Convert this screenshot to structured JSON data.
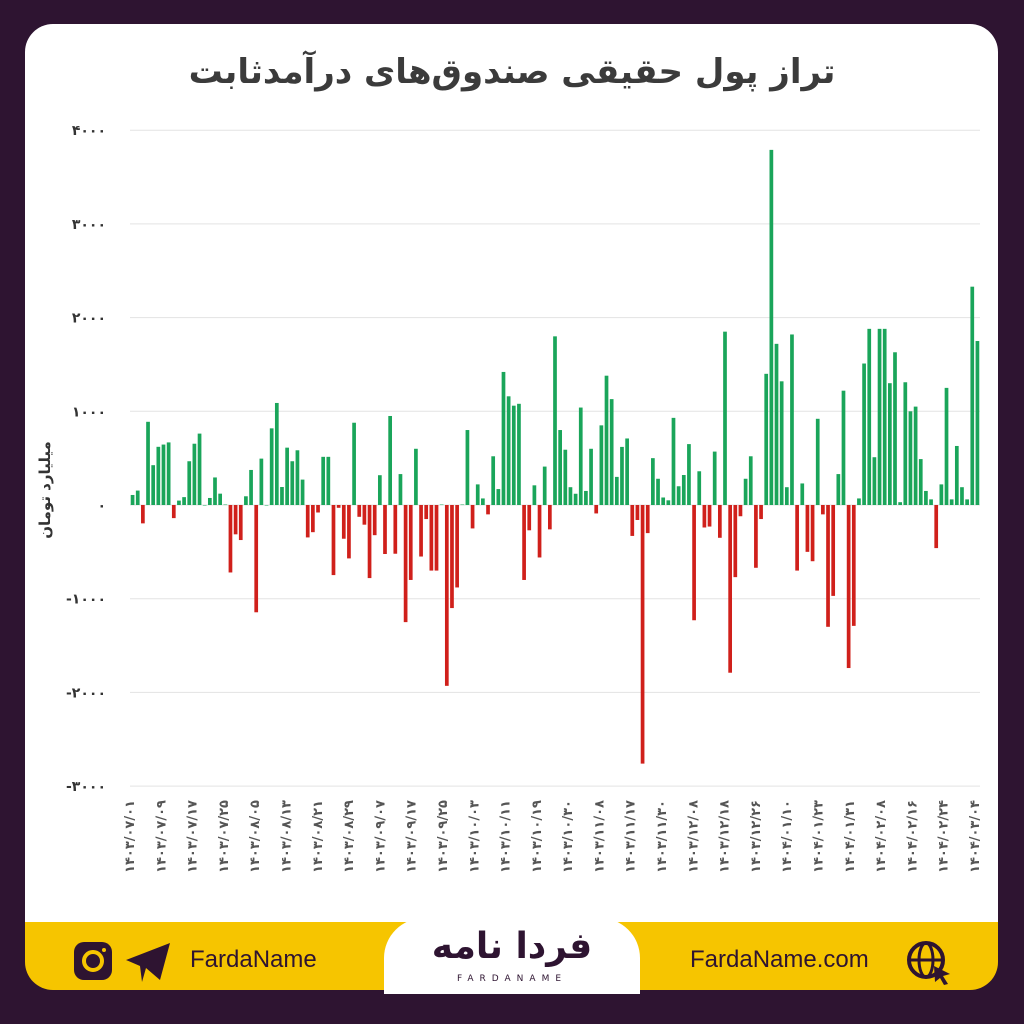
{
  "chart_data": {
    "type": "bar",
    "title": "تراز پول حقیقی صندوق‌های درآمدثابت",
    "ylabel": "میلیارد تومان",
    "xlabel": "",
    "ylim": [
      -3000,
      4000
    ],
    "yticks": [
      4000,
      3000,
      2000,
      1000,
      0,
      -1000,
      -2000,
      -3000
    ],
    "ytick_labels": [
      "۴۰۰۰",
      "۳۰۰۰",
      "۲۰۰۰",
      "۱۰۰۰",
      "۰",
      "-۱۰۰۰",
      "-۲۰۰۰",
      "-۳۰۰۰"
    ],
    "grid": true,
    "colors": {
      "positive": "#1aa55a",
      "negative": "#d0201b"
    },
    "x_tick_labels": [
      "۱۴۰۳/۰۷/۰۱",
      "۱۴۰۳/۰۷/۰۹",
      "۱۴۰۳/۰۷/۱۷",
      "۱۴۰۳/۰۷/۲۵",
      "۱۴۰۳/۰۸/۰۵",
      "۱۴۰۳/۰۸/۱۳",
      "۱۴۰۳/۰۸/۲۱",
      "۱۴۰۳/۰۸/۲۹",
      "۱۴۰۳/۰۹/۰۷",
      "۱۴۰۳/۰۹/۱۷",
      "۱۴۰۳/۰۹/۲۵",
      "۱۴۰۳/۱۰/۰۳",
      "۱۴۰۳/۱۰/۱۱",
      "۱۴۰۳/۱۰/۱۹",
      "۱۴۰۳/۱۰/۳۰",
      "۱۴۰۳/۱۱/۰۸",
      "۱۴۰۳/۱۱/۱۷",
      "۱۴۰۳/۱۱/۳۰",
      "۱۴۰۳/۱۲/۰۸",
      "۱۴۰۳/۱۲/۱۸",
      "۱۴۰۳/۱۲/۲۶",
      "۱۴۰۴/۰۱/۱۰",
      "۱۴۰۴/۰۱/۲۳",
      "۱۴۰۴/۰۱/۳۱",
      "۱۴۰۴/۰۲/۰۸",
      "۱۴۰۴/۰۲/۱۶",
      "۱۴۰۴/۰۲/۲۴",
      "۱۴۰۴/۰۳/۰۴"
    ],
    "values": [
      107,
      154,
      -196,
      888,
      425,
      621,
      645,
      668,
      -140,
      47,
      84,
      467,
      654,
      762,
      0,
      75,
      294,
      121,
      5,
      -720,
      -313,
      -374,
      93,
      374,
      -1145,
      495,
      0,
      818,
      1089,
      192,
      612,
      467,
      584,
      271,
      -346,
      -290,
      -80,
      514,
      514,
      -748,
      -30,
      -360,
      -570,
      878,
      -126,
      -210,
      -780,
      -322,
      318,
      -523,
      950,
      -520,
      330,
      -1250,
      -800,
      600,
      -550,
      -150,
      -700,
      -700,
      5,
      -1930,
      -1100,
      -880,
      5,
      800,
      -250,
      220,
      70,
      -100,
      520,
      170,
      1420,
      1160,
      1060,
      1080,
      -800,
      -270,
      210,
      -560,
      410,
      -260,
      1800,
      800,
      590,
      190,
      120,
      1040,
      150,
      600,
      -90,
      850,
      1380,
      1130,
      300,
      620,
      710,
      -330,
      -160,
      -2760,
      -300,
      500,
      280,
      80,
      50,
      930,
      200,
      320,
      650,
      -1230,
      360,
      -240,
      -230,
      570,
      -350,
      1850,
      -1790,
      -770,
      -120,
      280,
      520,
      -670,
      -150,
      1400,
      3790,
      1720,
      1320,
      190,
      1820,
      -700,
      230,
      -500,
      -600,
      920,
      -100,
      -1300,
      -970,
      330,
      1220,
      -1740,
      -1290,
      70,
      1510,
      1880,
      510,
      1880,
      1880,
      1300,
      1630,
      30,
      1310,
      1000,
      1050,
      490,
      150,
      60,
      -460,
      220,
      1250,
      60,
      630,
      190,
      60,
      2330,
      1750
    ]
  },
  "footer": {
    "social_handle": "FardaName",
    "website": "FardaName.com",
    "logo_fa": "فردا نامه",
    "logo_en": "FARDANAME",
    "icons": [
      "instagram-icon",
      "telegram-icon",
      "globe-icon"
    ]
  }
}
